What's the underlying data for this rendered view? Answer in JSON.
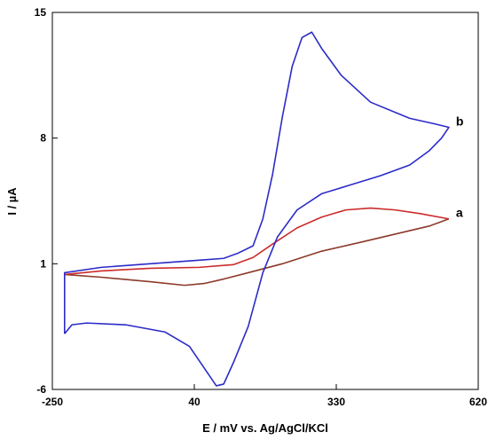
{
  "chart_data": {
    "type": "line",
    "title": "",
    "xlabel": "E / mV vs. Ag/AgCl/KCl",
    "ylabel": "I / µA",
    "xlim": [
      -250,
      620
    ],
    "ylim": [
      -6,
      15
    ],
    "x_ticks": [
      -250,
      40,
      330,
      620
    ],
    "y_ticks": [
      -6,
      1,
      8,
      15
    ],
    "x_tick_labels": [
      "-250",
      "40",
      "330",
      "620"
    ],
    "y_tick_labels": [
      "-6",
      "1",
      "8",
      "15"
    ],
    "grid": false,
    "legend": "none",
    "series": [
      {
        "name": "a",
        "colors": [
          "#cc2a2a",
          "#8b3a2a"
        ],
        "points": [
          [
            -225,
            0.4
          ],
          [
            -150,
            0.6
          ],
          [
            -50,
            0.75
          ],
          [
            50,
            0.8
          ],
          [
            120,
            0.95
          ],
          [
            160,
            1.35
          ],
          [
            200,
            2.1
          ],
          [
            250,
            3.0
          ],
          [
            300,
            3.6
          ],
          [
            350,
            4.0
          ],
          [
            400,
            4.1
          ],
          [
            450,
            4.0
          ],
          [
            500,
            3.8
          ],
          [
            560,
            3.5
          ],
          [
            520,
            3.1
          ],
          [
            450,
            2.65
          ],
          [
            380,
            2.2
          ],
          [
            300,
            1.7
          ],
          [
            220,
            1.0
          ],
          [
            150,
            0.5
          ],
          [
            100,
            0.15
          ],
          [
            60,
            -0.1
          ],
          [
            20,
            -0.2
          ],
          [
            -50,
            0.0
          ],
          [
            -150,
            0.25
          ],
          [
            -225,
            0.4
          ]
        ],
        "end_label": "a"
      },
      {
        "name": "b",
        "colors": [
          "#2b2bc8"
        ],
        "points": [
          [
            -225,
            -2.9
          ],
          [
            -210,
            -2.4
          ],
          [
            -180,
            -2.3
          ],
          [
            -100,
            -2.4
          ],
          [
            -20,
            -2.8
          ],
          [
            30,
            -3.6
          ],
          [
            60,
            -4.8
          ],
          [
            85,
            -5.8
          ],
          [
            100,
            -5.7
          ],
          [
            120,
            -4.5
          ],
          [
            150,
            -2.5
          ],
          [
            180,
            0.5
          ],
          [
            210,
            2.5
          ],
          [
            250,
            4.0
          ],
          [
            300,
            4.9
          ],
          [
            360,
            5.4
          ],
          [
            420,
            5.9
          ],
          [
            480,
            6.5
          ],
          [
            520,
            7.3
          ],
          [
            545,
            8.0
          ],
          [
            560,
            8.6
          ],
          [
            530,
            8.8
          ],
          [
            480,
            9.1
          ],
          [
            400,
            10.0
          ],
          [
            340,
            11.5
          ],
          [
            300,
            13.0
          ],
          [
            280,
            13.9
          ],
          [
            260,
            13.6
          ],
          [
            240,
            12.0
          ],
          [
            220,
            9.2
          ],
          [
            200,
            6.0
          ],
          [
            180,
            3.5
          ],
          [
            160,
            2.0
          ],
          [
            130,
            1.6
          ],
          [
            100,
            1.3
          ],
          [
            50,
            1.2
          ],
          [
            -50,
            1.0
          ],
          [
            -150,
            0.8
          ],
          [
            -225,
            0.5
          ],
          [
            -225,
            -2.9
          ]
        ],
        "end_label": "b"
      }
    ]
  }
}
